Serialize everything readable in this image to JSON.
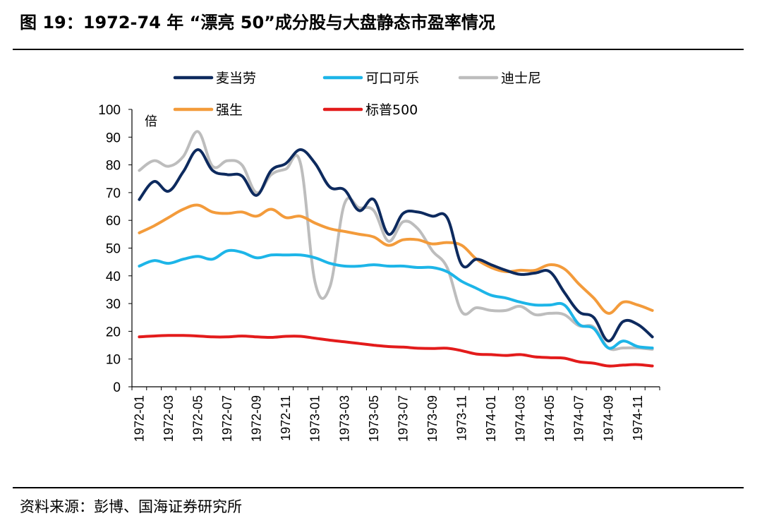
{
  "header": {
    "title": "图 19：1972-74 年  “漂亮 50”成分股与大盘静态市盈率情况"
  },
  "footer": {
    "source": "资料来源：彭博、国海证券研究所"
  },
  "chart_data": {
    "type": "line",
    "y_unit_label": "倍",
    "ylim": [
      0,
      100
    ],
    "y_ticks": [
      0,
      10,
      20,
      30,
      40,
      50,
      60,
      70,
      80,
      90,
      100
    ],
    "x_tick_labels": [
      "1972-01",
      "1972-03",
      "1972-05",
      "1972-07",
      "1972-09",
      "1972-11",
      "1973-01",
      "1973-03",
      "1973-05",
      "1973-07",
      "1973-09",
      "1973-11",
      "1974-01",
      "1974-03",
      "1974-05",
      "1974-07",
      "1974-09",
      "1974-11"
    ],
    "x": [
      "1972-01",
      "1972-02",
      "1972-03",
      "1972-04",
      "1972-05",
      "1972-06",
      "1972-07",
      "1972-08",
      "1972-09",
      "1972-10",
      "1972-11",
      "1972-12",
      "1973-01",
      "1973-02",
      "1973-03",
      "1973-04",
      "1973-05",
      "1973-06",
      "1973-07",
      "1973-08",
      "1973-09",
      "1973-10",
      "1973-11",
      "1973-12",
      "1974-01",
      "1974-02",
      "1974-03",
      "1974-04",
      "1974-05",
      "1974-06",
      "1974-07",
      "1974-08",
      "1974-09",
      "1974-10",
      "1974-11",
      "1974-12"
    ],
    "grid": false,
    "legend_position": "top",
    "series": [
      {
        "name": "麦当劳",
        "color": "#0d2a5e",
        "values": [
          67.5,
          74,
          70.5,
          77.5,
          85.5,
          78,
          76.5,
          76,
          69,
          78,
          80.5,
          85.5,
          80.5,
          72,
          71,
          63.5,
          67.5,
          55,
          62.5,
          63,
          61.5,
          61,
          44,
          46,
          44,
          42,
          40.5,
          41,
          41.5,
          34,
          27,
          25,
          16.5,
          23.5,
          22.5,
          18
        ]
      },
      {
        "name": "可口可乐",
        "color": "#1db5e8",
        "values": [
          43.5,
          45.5,
          44.5,
          46,
          47,
          46,
          49,
          48.5,
          46.5,
          47.5,
          47.5,
          47.5,
          46.5,
          44.5,
          43.5,
          43.5,
          44,
          43.5,
          43.5,
          43,
          43,
          41.5,
          38,
          35.5,
          33,
          32,
          30.5,
          29.5,
          29.5,
          29.5,
          22.5,
          21,
          14,
          16.5,
          14.5,
          14
        ]
      },
      {
        "name": "迪士尼",
        "color": "#bdbdbd",
        "values": [
          78,
          81.5,
          79.5,
          83,
          92,
          79.5,
          81.5,
          80,
          70,
          76.5,
          78.5,
          80.5,
          37.5,
          36,
          66,
          64.5,
          63.5,
          52.5,
          59.5,
          57,
          49,
          43,
          27,
          28.5,
          27.5,
          27.5,
          29,
          26,
          26.5,
          26,
          22,
          21.5,
          14,
          14,
          14,
          13.5
        ]
      },
      {
        "name": "强生",
        "color": "#f39b3b",
        "values": [
          55.5,
          58,
          61,
          64,
          65.5,
          63,
          62.5,
          63,
          61.5,
          64,
          61,
          61.5,
          59,
          57,
          56,
          55,
          54,
          51,
          53,
          53,
          51.5,
          52,
          51,
          46,
          43,
          41.5,
          42,
          42,
          44,
          42.5,
          37,
          32,
          26.5,
          30.5,
          29.5,
          27.5
        ]
      },
      {
        "name": "标普500",
        "color": "#e31b1b",
        "values": [
          18,
          18.3,
          18.5,
          18.5,
          18.3,
          18,
          18,
          18.3,
          18,
          17.8,
          18.2,
          18.2,
          17.5,
          16.8,
          16.2,
          15.6,
          15,
          14.5,
          14.3,
          13.9,
          13.8,
          13.9,
          13,
          11.8,
          11.6,
          11.3,
          11.6,
          10.8,
          10.5,
          10.3,
          9,
          8.5,
          7.5,
          7.8,
          8,
          7.5
        ]
      }
    ]
  }
}
